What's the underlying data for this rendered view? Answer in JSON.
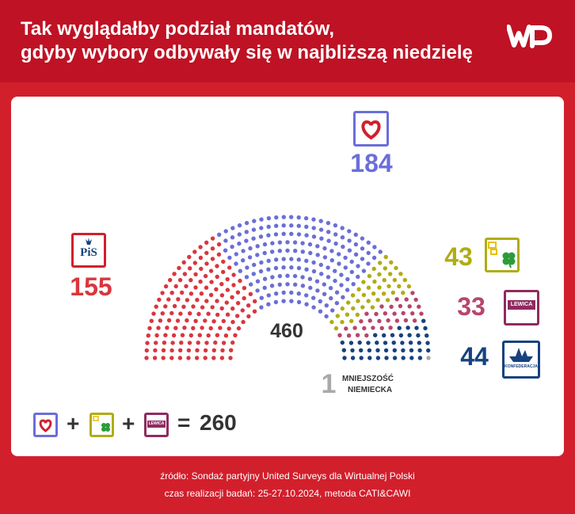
{
  "header": {
    "title_line1": "Tak wyglądałby podział mandatów,",
    "title_line2": "gdyby wybory odbywały się w najbliższą niedzielę",
    "logo": "WP"
  },
  "colors": {
    "ko": "#6b6ed8",
    "pis": "#d9363e",
    "td": "#b0ac14",
    "lewica": "#b8456a",
    "konf": "#16427f",
    "mn": "#a9a9a9"
  },
  "chart_data": {
    "type": "parliament",
    "total": 460,
    "total_label": "460",
    "parties": [
      {
        "name": "PiS",
        "seats": 155,
        "color": "#d9363e",
        "icon": "pis-logo"
      },
      {
        "name": "KO",
        "seats": 184,
        "color": "#6b6ed8",
        "icon": "heart-logo"
      },
      {
        "name": "Trzecia Droga",
        "seats": 43,
        "color": "#b0ac14",
        "icon": "clover-logo"
      },
      {
        "name": "Lewica",
        "seats": 33,
        "color": "#b8456a",
        "icon": "lewica-logo"
      },
      {
        "name": "Konfederacja",
        "seats": 44,
        "color": "#16427f",
        "icon": "ship-logo"
      },
      {
        "name": "Mniejszość Niemiecka",
        "seats": 1,
        "color": "#a9a9a9",
        "icon": ""
      }
    ],
    "labels": {
      "pis": "155",
      "ko": "184",
      "td": "43",
      "lewica": "33",
      "konf": "44",
      "mn_num": "1",
      "mn_line1": "MNIEJSZOŚĆ",
      "mn_line2": "NIEMIECKA"
    }
  },
  "logos": {
    "pis_text": "PiS",
    "lewica_text": "LEWICA",
    "konf_text": "KONFEDERACJA"
  },
  "formula": {
    "plus1": "+",
    "plus2": "+",
    "equals": "=",
    "result": "260"
  },
  "footer": {
    "line1": "źródło: Sondaż partyjny United Surveys dla Wirtualnej Polski",
    "line2": "czas realizacji badań: 25-27.10.2024, metoda CATI&CAWI"
  }
}
